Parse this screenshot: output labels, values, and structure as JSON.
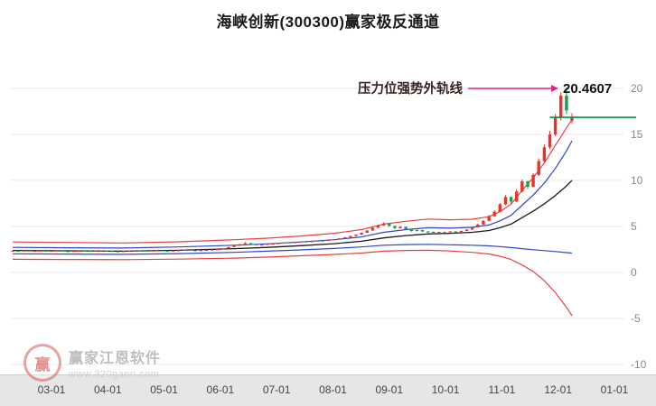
{
  "title": "海峡创新(300300)赢家极反通道",
  "annotation": {
    "label": "压力位强势外轨线",
    "value": "20.4607"
  },
  "watermark": {
    "logo_char": "赢",
    "brand": "赢家江恩软件",
    "url": "www.320gann.com"
  },
  "chart_data": {
    "type": "candlestick",
    "title": "海峡创新(300300)赢家极反通道",
    "x_axis": {
      "ticks": [
        "03-01",
        "04-01",
        "05-01",
        "06-01",
        "07-01",
        "08-01",
        "09-01",
        "10-01",
        "11-01",
        "12-01",
        "01-01"
      ]
    },
    "y_axis": {
      "ticks": [
        20,
        15,
        10,
        5,
        0,
        -5,
        -10
      ],
      "visible_range": [
        -10,
        20
      ]
    },
    "pressure_level": 20.4607,
    "price_line": {
      "value": 16.85,
      "color": "#0b8c45"
    },
    "colors": {
      "up": "#e8342a",
      "down": "#12a24e",
      "grid": "#eaeaea",
      "y_label": "#8a8a8a",
      "x_label": "#444444",
      "annotation_text": "#3a2222",
      "annotation_arrow": "#e0218a",
      "value_text": "#111111"
    },
    "channel_lines": [
      {
        "name": "upper-outer-rail-red",
        "color": "#e84040",
        "width": 1.2,
        "points": [
          [
            0,
            3.3
          ],
          [
            10,
            3.25
          ],
          [
            20,
            3.2
          ],
          [
            30,
            3.32
          ],
          [
            40,
            3.55
          ],
          [
            46,
            3.72
          ],
          [
            52,
            3.95
          ],
          [
            58,
            4.25
          ],
          [
            63,
            4.65
          ],
          [
            67,
            5.25
          ],
          [
            71,
            5.55
          ],
          [
            75,
            5.8
          ],
          [
            79,
            5.72
          ],
          [
            83,
            5.78
          ],
          [
            86,
            6.05
          ],
          [
            88,
            6.6
          ],
          [
            90,
            7.4
          ],
          [
            92,
            8.9
          ],
          [
            94,
            10.3
          ],
          [
            96,
            11.9
          ],
          [
            98,
            13.8
          ],
          [
            100,
            15.7
          ],
          [
            101,
            16.6
          ]
        ]
      },
      {
        "name": "upper-inner-rail-blue",
        "color": "#2e44cc",
        "width": 1.2,
        "points": [
          [
            0,
            2.72
          ],
          [
            10,
            2.68
          ],
          [
            20,
            2.65
          ],
          [
            30,
            2.76
          ],
          [
            40,
            2.95
          ],
          [
            46,
            3.1
          ],
          [
            52,
            3.3
          ],
          [
            58,
            3.55
          ],
          [
            63,
            3.85
          ],
          [
            67,
            4.35
          ],
          [
            71,
            4.65
          ],
          [
            75,
            4.85
          ],
          [
            79,
            4.8
          ],
          [
            83,
            4.9
          ],
          [
            86,
            5.15
          ],
          [
            88,
            5.6
          ],
          [
            90,
            6.2
          ],
          [
            92,
            7.3
          ],
          [
            94,
            8.4
          ],
          [
            96,
            9.7
          ],
          [
            98,
            11.3
          ],
          [
            100,
            13.2
          ],
          [
            101,
            14.3
          ]
        ]
      },
      {
        "name": "middle-line-black",
        "color": "#1a1a1a",
        "width": 1.3,
        "points": [
          [
            0,
            2.38
          ],
          [
            10,
            2.34
          ],
          [
            20,
            2.3
          ],
          [
            30,
            2.4
          ],
          [
            40,
            2.58
          ],
          [
            46,
            2.72
          ],
          [
            52,
            2.9
          ],
          [
            58,
            3.12
          ],
          [
            63,
            3.38
          ],
          [
            67,
            3.75
          ],
          [
            71,
            4.0
          ],
          [
            75,
            4.18
          ],
          [
            79,
            4.25
          ],
          [
            83,
            4.35
          ],
          [
            86,
            4.55
          ],
          [
            88,
            4.85
          ],
          [
            90,
            5.25
          ],
          [
            92,
            5.95
          ],
          [
            94,
            6.65
          ],
          [
            96,
            7.45
          ],
          [
            98,
            8.35
          ],
          [
            100,
            9.4
          ],
          [
            101,
            10.0
          ]
        ]
      },
      {
        "name": "lower-inner-rail-blue",
        "color": "#2e44cc",
        "width": 1.2,
        "points": [
          [
            0,
            2.02
          ],
          [
            10,
            1.99
          ],
          [
            20,
            1.96
          ],
          [
            30,
            2.04
          ],
          [
            40,
            2.18
          ],
          [
            46,
            2.3
          ],
          [
            52,
            2.44
          ],
          [
            58,
            2.6
          ],
          [
            63,
            2.76
          ],
          [
            67,
            2.95
          ],
          [
            71,
            3.02
          ],
          [
            75,
            3.05
          ],
          [
            79,
            3.0
          ],
          [
            83,
            2.95
          ],
          [
            86,
            2.88
          ],
          [
            88,
            2.8
          ],
          [
            90,
            2.7
          ],
          [
            92,
            2.58
          ],
          [
            94,
            2.46
          ],
          [
            96,
            2.36
          ],
          [
            98,
            2.26
          ],
          [
            100,
            2.15
          ],
          [
            101,
            2.1
          ]
        ]
      },
      {
        "name": "lower-outer-rail-red",
        "color": "#e84040",
        "width": 1.2,
        "points": [
          [
            0,
            1.42
          ],
          [
            10,
            1.4
          ],
          [
            20,
            1.38
          ],
          [
            30,
            1.44
          ],
          [
            40,
            1.55
          ],
          [
            46,
            1.66
          ],
          [
            52,
            1.8
          ],
          [
            58,
            1.95
          ],
          [
            63,
            2.1
          ],
          [
            67,
            2.3
          ],
          [
            71,
            2.38
          ],
          [
            75,
            2.4
          ],
          [
            79,
            2.32
          ],
          [
            83,
            2.18
          ],
          [
            86,
            2.0
          ],
          [
            88,
            1.75
          ],
          [
            90,
            1.4
          ],
          [
            92,
            0.8
          ],
          [
            94,
            0.1
          ],
          [
            96,
            -0.9
          ],
          [
            98,
            -2.2
          ],
          [
            100,
            -3.8
          ],
          [
            101,
            -4.7
          ]
        ]
      }
    ],
    "candles": [
      [
        2.33,
        2.37,
        2.31,
        2.35
      ],
      [
        2.35,
        2.36,
        2.3,
        2.32
      ],
      [
        2.32,
        2.38,
        2.31,
        2.36
      ],
      [
        2.36,
        2.37,
        2.28,
        2.3
      ],
      [
        2.3,
        2.35,
        2.29,
        2.33
      ],
      [
        2.33,
        2.37,
        2.32,
        2.35
      ],
      [
        2.35,
        2.36,
        2.29,
        2.31
      ],
      [
        2.31,
        2.35,
        2.3,
        2.33
      ],
      [
        2.33,
        2.38,
        2.32,
        2.36
      ],
      [
        2.36,
        2.37,
        2.28,
        2.3
      ],
      [
        2.3,
        2.32,
        2.26,
        2.28
      ],
      [
        2.28,
        2.34,
        2.27,
        2.32
      ],
      [
        2.32,
        2.37,
        2.31,
        2.35
      ],
      [
        2.35,
        2.36,
        2.31,
        2.33
      ],
      [
        2.33,
        2.34,
        2.28,
        2.3
      ],
      [
        2.3,
        2.36,
        2.29,
        2.34
      ],
      [
        2.34,
        2.38,
        2.33,
        2.36
      ],
      [
        2.36,
        2.37,
        2.3,
        2.32
      ],
      [
        2.32,
        2.33,
        2.26,
        2.28
      ],
      [
        2.28,
        2.3,
        2.23,
        2.25
      ],
      [
        2.25,
        2.32,
        2.24,
        2.3
      ],
      [
        2.3,
        2.38,
        2.29,
        2.36
      ],
      [
        2.36,
        2.42,
        2.35,
        2.4
      ],
      [
        2.4,
        2.41,
        2.34,
        2.36
      ],
      [
        2.36,
        2.38,
        2.31,
        2.33
      ],
      [
        2.33,
        2.38,
        2.32,
        2.36
      ],
      [
        2.36,
        2.4,
        2.34,
        2.38
      ],
      [
        2.38,
        2.39,
        2.33,
        2.35
      ],
      [
        2.35,
        2.36,
        2.3,
        2.32
      ],
      [
        2.32,
        2.38,
        2.31,
        2.36
      ],
      [
        2.36,
        2.42,
        2.35,
        2.4
      ],
      [
        2.4,
        2.46,
        2.39,
        2.44
      ],
      [
        2.44,
        2.45,
        2.38,
        2.4
      ],
      [
        2.4,
        2.41,
        2.34,
        2.36
      ],
      [
        2.36,
        2.42,
        2.35,
        2.4
      ],
      [
        2.4,
        2.46,
        2.39,
        2.44
      ],
      [
        2.44,
        2.49,
        2.43,
        2.47
      ],
      [
        2.47,
        2.55,
        2.46,
        2.52
      ],
      [
        2.52,
        2.63,
        2.51,
        2.6
      ],
      [
        2.6,
        2.78,
        2.59,
        2.74
      ],
      [
        2.74,
        2.95,
        2.73,
        2.9
      ],
      [
        2.9,
        3.12,
        2.89,
        3.05
      ],
      [
        3.05,
        3.3,
        3.04,
        3.18
      ],
      [
        3.18,
        3.2,
        3.0,
        3.05
      ],
      [
        3.05,
        3.08,
        2.9,
        2.95
      ],
      [
        2.95,
        3.05,
        2.92,
        3.0
      ],
      [
        3.0,
        3.12,
        2.98,
        3.08
      ],
      [
        3.08,
        3.16,
        3.05,
        3.12
      ],
      [
        3.12,
        3.22,
        3.1,
        3.18
      ],
      [
        3.18,
        3.28,
        3.15,
        3.25
      ],
      [
        3.25,
        3.27,
        3.15,
        3.2
      ],
      [
        3.2,
        3.32,
        3.18,
        3.28
      ],
      [
        3.28,
        3.38,
        3.26,
        3.35
      ],
      [
        3.35,
        3.37,
        3.25,
        3.3
      ],
      [
        3.3,
        3.42,
        3.28,
        3.38
      ],
      [
        3.38,
        3.48,
        3.36,
        3.45
      ],
      [
        3.45,
        3.47,
        3.38,
        3.42
      ],
      [
        3.42,
        3.58,
        3.41,
        3.55
      ],
      [
        3.55,
        3.63,
        3.52,
        3.6
      ],
      [
        3.6,
        3.74,
        3.58,
        3.7
      ],
      [
        3.7,
        3.84,
        3.68,
        3.8
      ],
      [
        3.8,
        3.99,
        3.78,
        3.95
      ],
      [
        3.95,
        4.14,
        3.93,
        4.1
      ],
      [
        4.1,
        4.34,
        4.08,
        4.3
      ],
      [
        4.3,
        4.6,
        4.28,
        4.55
      ],
      [
        4.55,
        4.9,
        4.52,
        4.85
      ],
      [
        4.85,
        5.18,
        4.82,
        5.1
      ],
      [
        5.1,
        5.45,
        5.05,
        5.3
      ],
      [
        5.3,
        5.32,
        4.95,
        5.05
      ],
      [
        5.05,
        5.08,
        4.72,
        4.8
      ],
      [
        4.8,
        5.0,
        4.76,
        4.95
      ],
      [
        4.95,
        4.97,
        4.62,
        4.7
      ],
      [
        4.7,
        4.72,
        4.42,
        4.5
      ],
      [
        4.5,
        4.65,
        4.46,
        4.6
      ],
      [
        4.6,
        4.62,
        4.38,
        4.45
      ],
      [
        4.45,
        4.48,
        4.28,
        4.35
      ],
      [
        4.35,
        4.45,
        4.3,
        4.4
      ],
      [
        4.4,
        4.42,
        4.24,
        4.3
      ],
      [
        4.3,
        4.42,
        4.27,
        4.38
      ],
      [
        4.38,
        4.5,
        4.35,
        4.45
      ],
      [
        4.45,
        4.47,
        4.33,
        4.4
      ],
      [
        4.4,
        4.55,
        4.38,
        4.5
      ],
      [
        4.5,
        4.7,
        4.47,
        4.65
      ],
      [
        4.65,
        4.95,
        4.62,
        4.9
      ],
      [
        4.9,
        5.28,
        4.87,
        5.2
      ],
      [
        5.2,
        5.7,
        5.17,
        5.6
      ],
      [
        5.6,
        6.22,
        5.56,
        6.1
      ],
      [
        6.1,
        6.75,
        6.05,
        6.6
      ],
      [
        6.6,
        7.55,
        6.55,
        7.4
      ],
      [
        7.4,
        8.4,
        7.3,
        8.2
      ],
      [
        8.2,
        8.25,
        7.5,
        7.7
      ],
      [
        7.7,
        9.0,
        7.65,
        8.8
      ],
      [
        8.8,
        10.1,
        8.7,
        9.9
      ],
      [
        9.9,
        9.95,
        9.05,
        9.3
      ],
      [
        9.3,
        10.8,
        9.25,
        10.6
      ],
      [
        10.6,
        12.4,
        10.5,
        12.1
      ],
      [
        12.1,
        13.9,
        11.9,
        13.6
      ],
      [
        13.6,
        15.4,
        13.4,
        15.0
      ],
      [
        15.0,
        17.2,
        14.8,
        16.8
      ],
      [
        16.8,
        19.6,
        16.5,
        19.2
      ],
      [
        19.2,
        20.1,
        17.2,
        17.6
      ],
      [
        16.5,
        17.3,
        16.2,
        16.85
      ]
    ]
  }
}
